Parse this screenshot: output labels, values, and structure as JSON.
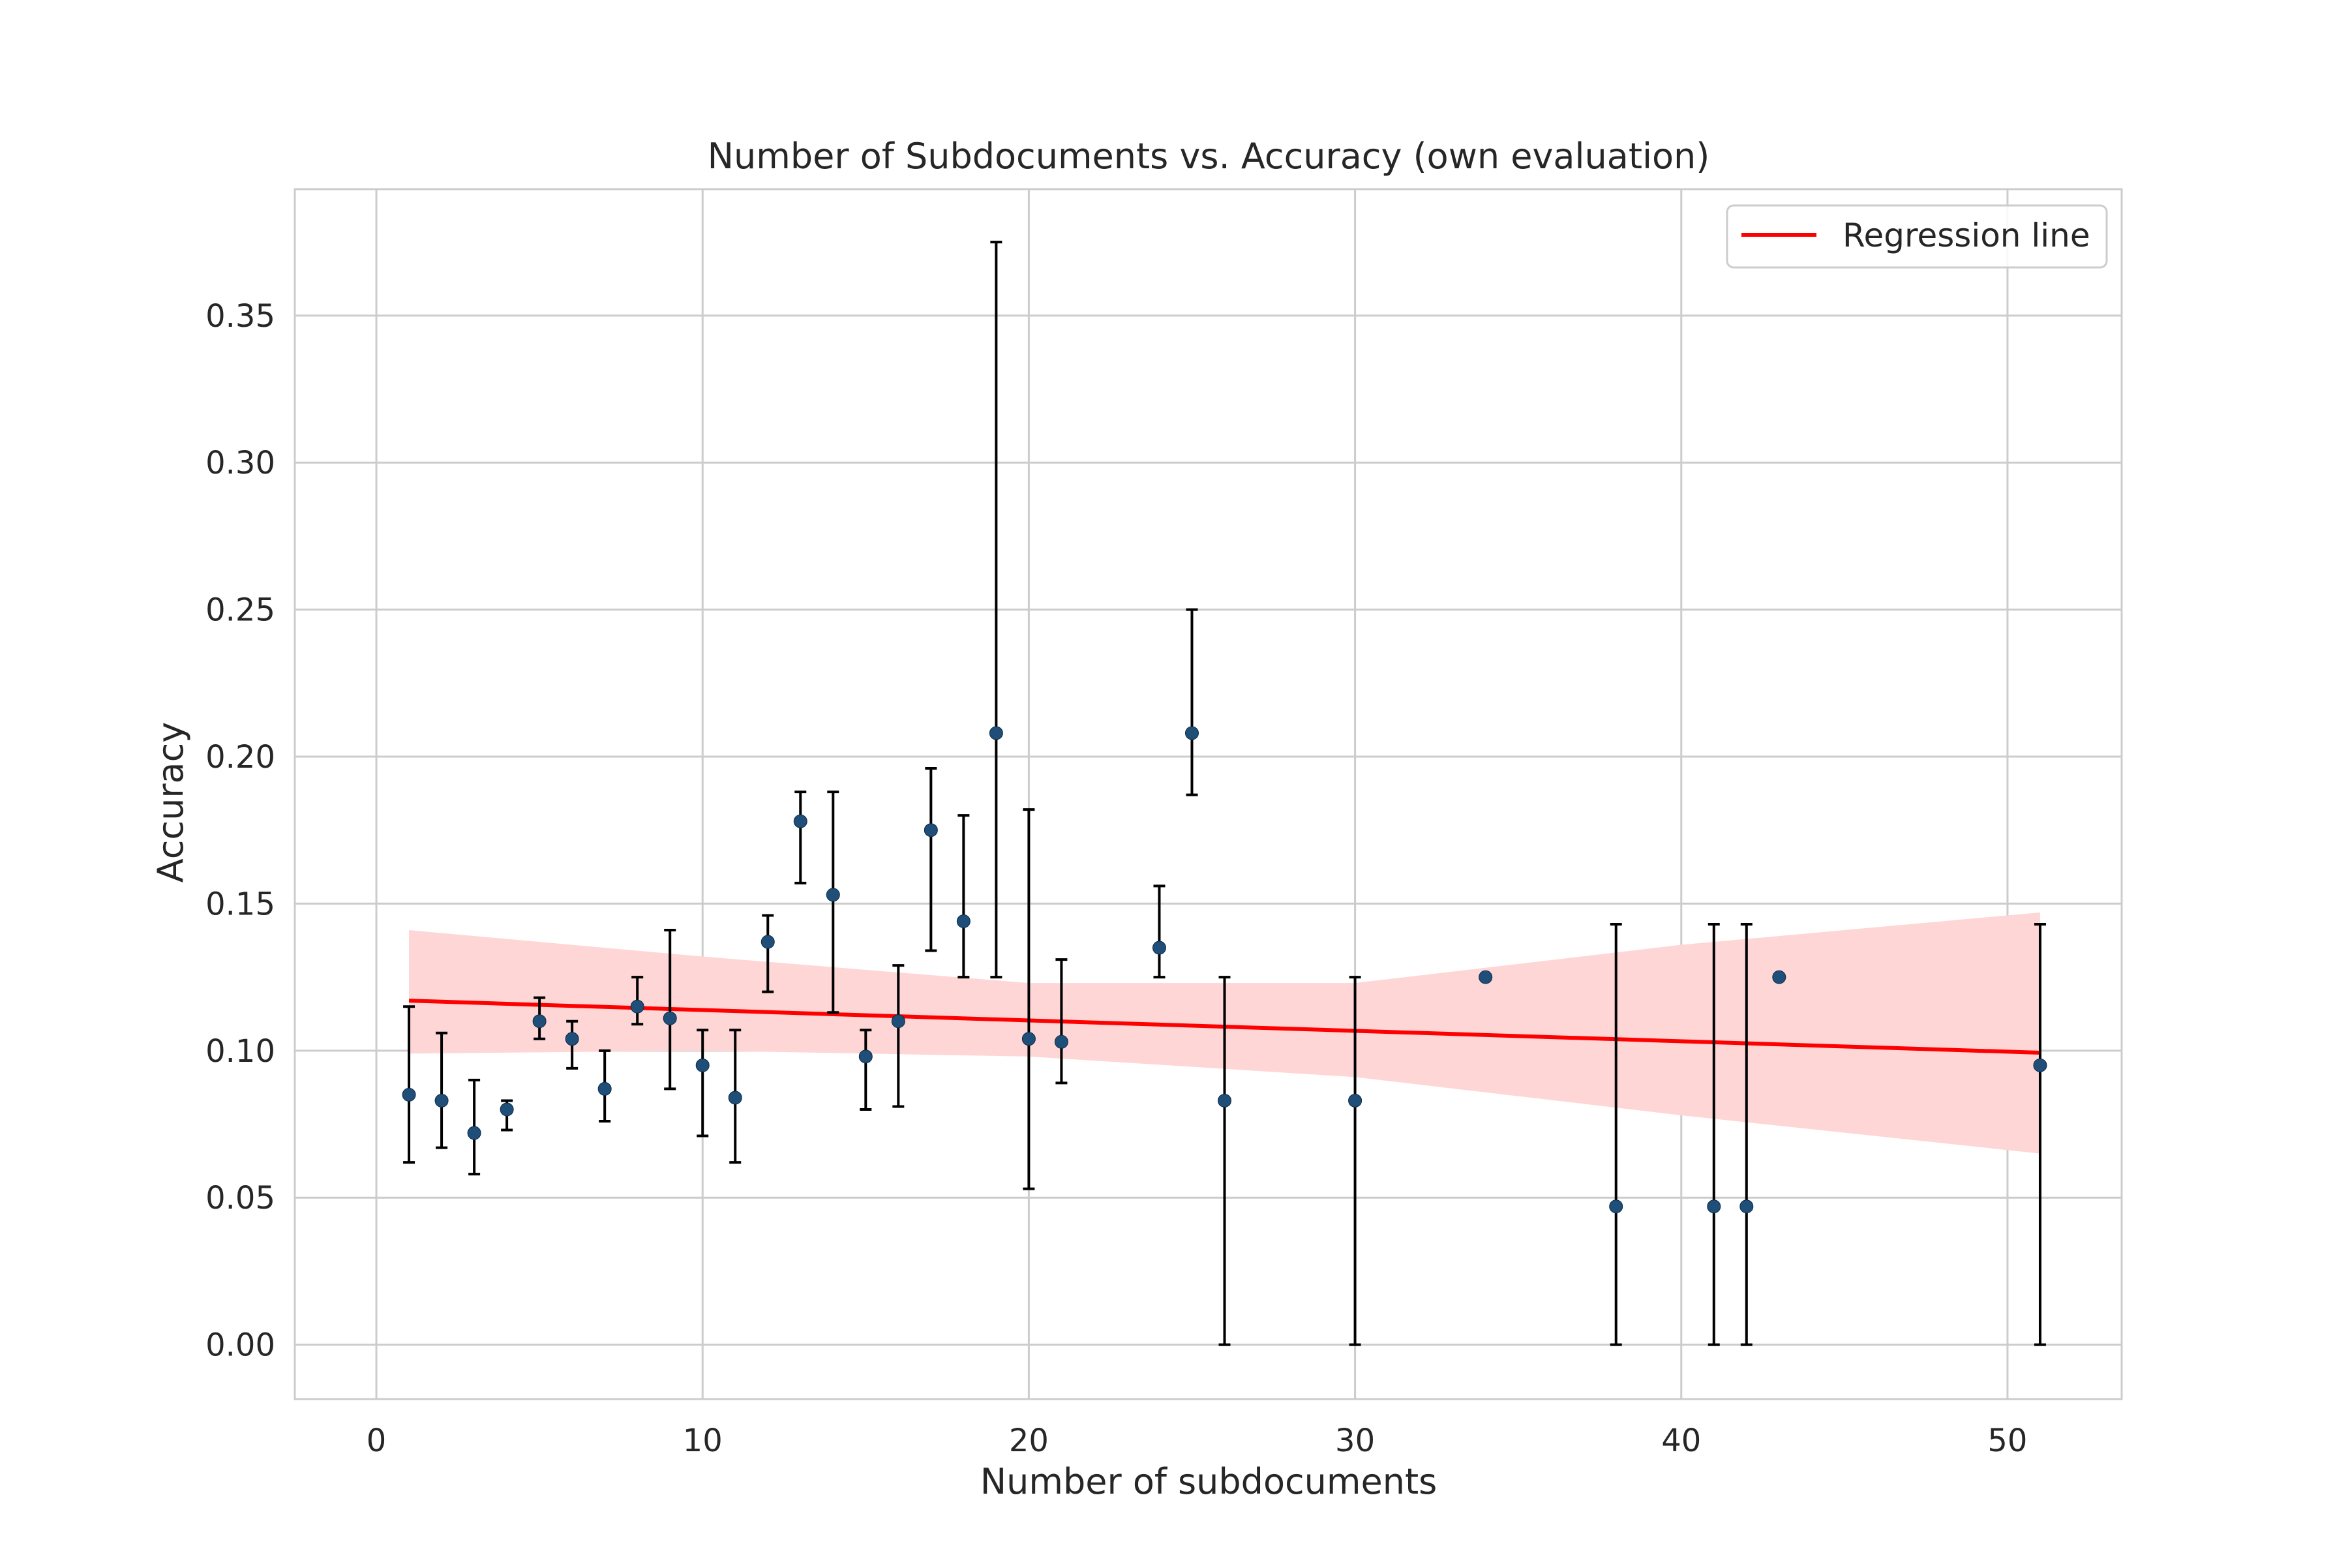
{
  "chart_data": {
    "type": "scatter",
    "title": "Number of Subdocuments vs. Accuracy (own evaluation)",
    "xlabel": "Number of subdocuments",
    "ylabel": "Accuracy",
    "xlim": [
      -2.5,
      53.5
    ],
    "ylim": [
      -0.0185,
      0.393
    ],
    "x_ticks": [
      0,
      10,
      20,
      30,
      40,
      50
    ],
    "y_ticks": [
      0.0,
      0.05,
      0.1,
      0.15,
      0.2,
      0.25,
      0.3,
      0.35
    ],
    "x_tick_labels": [
      "0",
      "10",
      "20",
      "30",
      "40",
      "50"
    ],
    "y_tick_labels": [
      "0.00",
      "0.05",
      "0.10",
      "0.15",
      "0.20",
      "0.25",
      "0.30",
      "0.35"
    ],
    "grid": true,
    "legend": {
      "position": "top-right",
      "entries": [
        "Regression line"
      ]
    },
    "colors": {
      "points": "#1f4e79",
      "regression": "#ff0000",
      "band": "#ffd6d6",
      "errorbars": "#000000"
    },
    "series": [
      {
        "kind": "points-with-error",
        "points": [
          {
            "x": 1,
            "y": 0.085,
            "lo": 0.062,
            "hi": 0.115
          },
          {
            "x": 2,
            "y": 0.083,
            "lo": 0.067,
            "hi": 0.106
          },
          {
            "x": 3,
            "y": 0.072,
            "lo": 0.058,
            "hi": 0.09
          },
          {
            "x": 4,
            "y": 0.08,
            "lo": 0.073,
            "hi": 0.083
          },
          {
            "x": 5,
            "y": 0.11,
            "lo": 0.104,
            "hi": 0.118
          },
          {
            "x": 6,
            "y": 0.104,
            "lo": 0.094,
            "hi": 0.11
          },
          {
            "x": 7,
            "y": 0.087,
            "lo": 0.076,
            "hi": 0.1
          },
          {
            "x": 8,
            "y": 0.115,
            "lo": 0.109,
            "hi": 0.125
          },
          {
            "x": 9,
            "y": 0.111,
            "lo": 0.087,
            "hi": 0.141
          },
          {
            "x": 10,
            "y": 0.095,
            "lo": 0.071,
            "hi": 0.107
          },
          {
            "x": 11,
            "y": 0.084,
            "lo": 0.062,
            "hi": 0.107
          },
          {
            "x": 12,
            "y": 0.137,
            "lo": 0.12,
            "hi": 0.146
          },
          {
            "x": 13,
            "y": 0.178,
            "lo": 0.157,
            "hi": 0.188
          },
          {
            "x": 14,
            "y": 0.153,
            "lo": 0.113,
            "hi": 0.188
          },
          {
            "x": 15,
            "y": 0.098,
            "lo": 0.08,
            "hi": 0.107
          },
          {
            "x": 16,
            "y": 0.11,
            "lo": 0.081,
            "hi": 0.129
          },
          {
            "x": 17,
            "y": 0.175,
            "lo": 0.134,
            "hi": 0.196
          },
          {
            "x": 18,
            "y": 0.144,
            "lo": 0.125,
            "hi": 0.18
          },
          {
            "x": 19,
            "y": 0.208,
            "lo": 0.125,
            "hi": 0.375
          },
          {
            "x": 20,
            "y": 0.104,
            "lo": 0.053,
            "hi": 0.182
          },
          {
            "x": 21,
            "y": 0.103,
            "lo": 0.089,
            "hi": 0.131
          },
          {
            "x": 24,
            "y": 0.135,
            "lo": 0.125,
            "hi": 0.156
          },
          {
            "x": 25,
            "y": 0.208,
            "lo": 0.187,
            "hi": 0.25
          },
          {
            "x": 26,
            "y": 0.083,
            "lo": 0.0,
            "hi": 0.125
          },
          {
            "x": 30,
            "y": 0.083,
            "lo": 0.0,
            "hi": 0.125
          },
          {
            "x": 34,
            "y": 0.125,
            "lo": 0.125,
            "hi": 0.125
          },
          {
            "x": 38,
            "y": 0.047,
            "lo": 0.0,
            "hi": 0.143
          },
          {
            "x": 41,
            "y": 0.047,
            "lo": 0.0,
            "hi": 0.143
          },
          {
            "x": 42,
            "y": 0.047,
            "lo": 0.0,
            "hi": 0.143
          },
          {
            "x": 43,
            "y": 0.125,
            "lo": 0.125,
            "hi": 0.125
          },
          {
            "x": 51,
            "y": 0.095,
            "lo": 0.0,
            "hi": 0.143
          }
        ]
      },
      {
        "kind": "regression",
        "name": "Regression line",
        "line": [
          {
            "x": 1,
            "y": 0.117
          },
          {
            "x": 51,
            "y": 0.0993
          }
        ],
        "band_upper": [
          {
            "x": 1,
            "y": 0.141
          },
          {
            "x": 10,
            "y": 0.132
          },
          {
            "x": 20,
            "y": 0.123
          },
          {
            "x": 30,
            "y": 0.123
          },
          {
            "x": 40,
            "y": 0.136
          },
          {
            "x": 51,
            "y": 0.147
          }
        ],
        "band_lower": [
          {
            "x": 1,
            "y": 0.099
          },
          {
            "x": 10,
            "y": 0.1
          },
          {
            "x": 20,
            "y": 0.098
          },
          {
            "x": 30,
            "y": 0.091
          },
          {
            "x": 40,
            "y": 0.078
          },
          {
            "x": 51,
            "y": 0.065
          }
        ]
      }
    ]
  }
}
